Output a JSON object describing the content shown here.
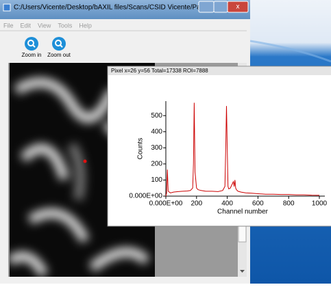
{
  "window": {
    "title": "C:/Users/Vicente/Desktop/bAXIL files/Scans/CSID Vicente/Parchm...",
    "menu": [
      "File",
      "Edit",
      "View",
      "Tools",
      "Help"
    ],
    "toolbar": [
      "Zoom in",
      "Zoom out"
    ]
  },
  "popup": {
    "title": "Pixel x=26 y=56 Total=17338 ROI=7888"
  },
  "chart_data": {
    "type": "line",
    "x_label": "Channel number",
    "y_label": "Counts",
    "color": "#cc0000",
    "x": [
      0,
      5,
      10,
      15,
      30,
      50,
      80,
      110,
      140,
      160,
      175,
      180,
      185,
      190,
      195,
      200,
      210,
      230,
      260,
      300,
      340,
      370,
      385,
      390,
      395,
      400,
      405,
      410,
      420,
      430,
      440,
      445,
      450,
      455,
      460,
      470,
      490,
      520,
      560,
      600,
      650,
      700,
      750,
      800,
      850,
      900,
      950,
      1000
    ],
    "values": [
      0,
      20,
      165,
      30,
      20,
      25,
      28,
      30,
      32,
      35,
      50,
      200,
      580,
      150,
      100,
      50,
      40,
      35,
      30,
      30,
      28,
      35,
      60,
      300,
      560,
      300,
      60,
      45,
      50,
      70,
      90,
      60,
      100,
      50,
      40,
      30,
      25,
      20,
      18,
      15,
      12,
      12,
      10,
      10,
      8,
      8,
      6,
      5
    ],
    "xlim": [
      0,
      1000
    ],
    "ylim": [
      0,
      590
    ],
    "xticks": [
      {
        "value": 0,
        "label": "0.000E+00"
      },
      200,
      400,
      600,
      800,
      1000
    ],
    "yticks": [
      {
        "value": 0,
        "label": "0.000E+00"
      },
      100,
      200,
      300,
      400,
      500
    ]
  }
}
